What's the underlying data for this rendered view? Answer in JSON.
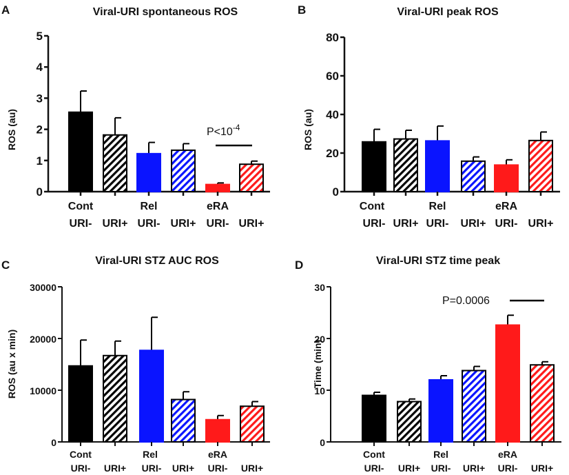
{
  "colors": {
    "cont": "#000000",
    "rel": "#0a14ff",
    "era": "#ff1a1a",
    "axis": "#111111"
  },
  "chart_data": [
    {
      "panel": "A",
      "type": "bar",
      "title": "Viral-URI spontaneous ROS",
      "ylabel": "ROS (au)",
      "ylim": [
        0,
        5
      ],
      "yticks": [
        "0",
        "1",
        "2",
        "3",
        "4",
        "5"
      ],
      "categories": [
        "Cont URI-",
        "Cont URI+",
        "Rel URI-",
        "Rel URI+",
        "eRA URI-",
        "eRA URI+"
      ],
      "group_labels": [
        "Cont",
        "Rel",
        "eRA"
      ],
      "uri_labels": [
        "URI-",
        "URI+",
        "URI-",
        "URI+",
        "URI-",
        "URI+"
      ],
      "values": [
        2.55,
        1.82,
        1.22,
        1.33,
        0.23,
        0.88
      ],
      "errors": [
        0.68,
        0.55,
        0.36,
        0.21,
        0.05,
        0.1
      ],
      "annotation": {
        "text": "P<10",
        "sup": "-4",
        "bars": [
          4,
          5
        ]
      }
    },
    {
      "panel": "B",
      "type": "bar",
      "title": "Viral-URI peak ROS",
      "ylabel": "ROS (au)",
      "ylim": [
        0,
        80
      ],
      "yticks": [
        "0",
        "20",
        "40",
        "60",
        "80"
      ],
      "categories": [
        "Cont URI-",
        "Cont URI+",
        "Rel URI-",
        "Rel URI+",
        "eRA URI-",
        "eRA URI+"
      ],
      "group_labels": [
        "Cont",
        "Rel",
        "eRA"
      ],
      "uri_labels": [
        "URI-",
        "URI+",
        "URI-",
        "URI+",
        "URI-",
        "URI+"
      ],
      "values": [
        25.8,
        27.3,
        26.3,
        15.8,
        13.8,
        26.5
      ],
      "errors": [
        6.5,
        4.5,
        7.7,
        2.2,
        2.7,
        4.4
      ]
    },
    {
      "panel": "C",
      "type": "bar",
      "title": "Viral-URI STZ AUC ROS",
      "ylabel": "ROS (au x min)",
      "ylim": [
        0,
        30000
      ],
      "yticks": [
        "0",
        "10000",
        "20000",
        "30000"
      ],
      "categories": [
        "Cont URI-",
        "Cont URI+",
        "Rel URI-",
        "Rel URI+",
        "eRA URI-",
        "eRA URI+"
      ],
      "group_labels": [
        "Cont",
        "Rel",
        "eRA"
      ],
      "uri_labels": [
        "URI-",
        "URI+",
        "URI-",
        "URI+",
        "URI-",
        "URI+"
      ],
      "values": [
        14700,
        16700,
        17700,
        8200,
        4300,
        6900
      ],
      "errors": [
        5000,
        2800,
        6400,
        1500,
        800,
        900
      ]
    },
    {
      "panel": "D",
      "type": "bar",
      "title": "Viral-URI STZ  time peak",
      "ylabel": "Time (min)",
      "ylim": [
        0,
        30
      ],
      "yticks": [
        "0",
        "10",
        "20",
        "30"
      ],
      "categories": [
        "Cont URI-",
        "Cont URI+",
        "Rel URI-",
        "Rel URI+",
        "eRA URI-",
        "eRA URI+"
      ],
      "group_labels": [
        "Cont",
        "Rel",
        "eRA"
      ],
      "uri_labels": [
        "URI-",
        "URI+",
        "URI-",
        "URI+",
        "URI-",
        "URI+"
      ],
      "values": [
        9.0,
        7.8,
        12.0,
        13.8,
        22.6,
        14.9
      ],
      "errors": [
        0.6,
        0.5,
        0.8,
        0.8,
        1.9,
        0.6
      ],
      "annotation": {
        "text": "P=0.0006",
        "sup": "",
        "bars": [
          4,
          5
        ]
      }
    }
  ]
}
